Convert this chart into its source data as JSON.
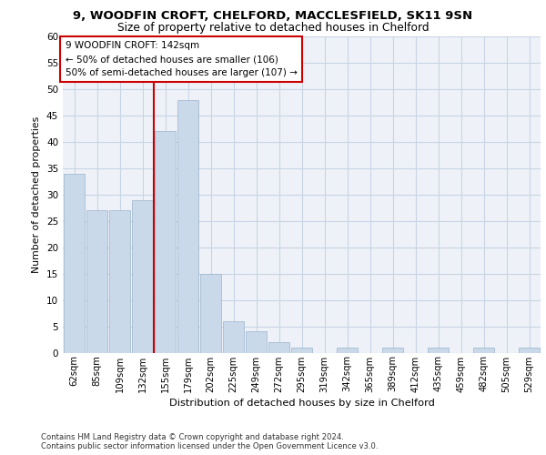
{
  "title_line1": "9, WOODFIN CROFT, CHELFORD, MACCLESFIELD, SK11 9SN",
  "title_line2": "Size of property relative to detached houses in Chelford",
  "xlabel": "Distribution of detached houses by size in Chelford",
  "ylabel": "Number of detached properties",
  "categories": [
    "62sqm",
    "85sqm",
    "109sqm",
    "132sqm",
    "155sqm",
    "179sqm",
    "202sqm",
    "225sqm",
    "249sqm",
    "272sqm",
    "295sqm",
    "319sqm",
    "342sqm",
    "365sqm",
    "389sqm",
    "412sqm",
    "435sqm",
    "459sqm",
    "482sqm",
    "505sqm",
    "529sqm"
  ],
  "values": [
    34,
    27,
    27,
    29,
    42,
    48,
    15,
    6,
    4,
    2,
    1,
    0,
    1,
    0,
    1,
    0,
    1,
    0,
    1,
    0,
    1
  ],
  "bar_color": "#c9d9ea",
  "bar_edge_color": "#9ab4cc",
  "grid_color": "#c8d4e4",
  "background_color": "#eef2f8",
  "vline_x": 3.5,
  "vline_color": "#cc0000",
  "annotation_text": "9 WOODFIN CROFT: 142sqm\n← 50% of detached houses are smaller (106)\n50% of semi-detached houses are larger (107) →",
  "annotation_box_facecolor": "#ffffff",
  "annotation_box_edgecolor": "#cc0000",
  "footnote_line1": "Contains HM Land Registry data © Crown copyright and database right 2024.",
  "footnote_line2": "Contains public sector information licensed under the Open Government Licence v3.0.",
  "ylim": [
    0,
    60
  ],
  "yticks": [
    0,
    5,
    10,
    15,
    20,
    25,
    30,
    35,
    40,
    45,
    50,
    55,
    60
  ]
}
